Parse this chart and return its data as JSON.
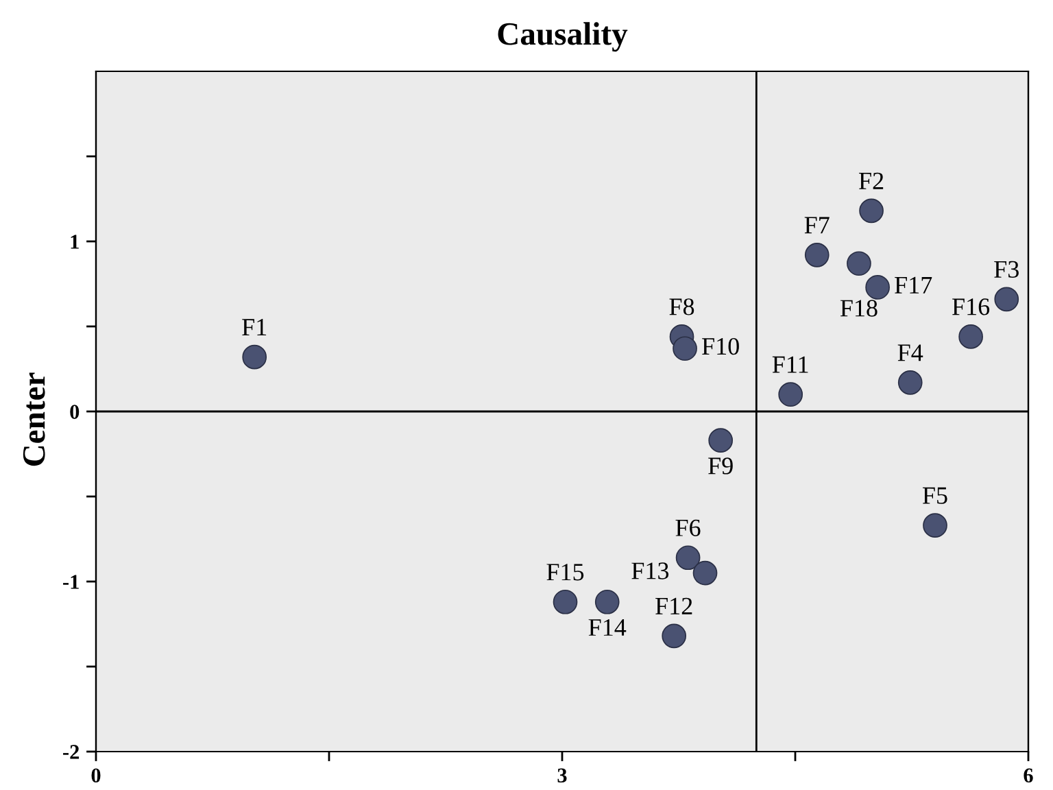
{
  "chart_data": {
    "type": "scatter",
    "title": "Causality",
    "ylabel": "Center",
    "xlim": [
      0,
      6
    ],
    "ylim": [
      -2,
      2
    ],
    "xticks": [
      0,
      {
        "value": 1.5,
        "label": null
      },
      3,
      {
        "value": 4.5,
        "label": null
      },
      6
    ],
    "yticks": [
      -2,
      {
        "value": -1.5,
        "label": null
      },
      -1,
      {
        "value": -0.5,
        "label": null
      },
      0,
      {
        "value": 0.5,
        "label": null
      },
      1,
      {
        "value": 1.5,
        "label": null
      }
    ],
    "ref_lines": [
      {
        "axis": "x",
        "value": 4.25
      },
      {
        "axis": "y",
        "value": 0
      }
    ],
    "series": [
      {
        "color": "#4a5272",
        "x": [
          1.02,
          4.99,
          5.86,
          5.24,
          5.4,
          3.81,
          4.64,
          3.77,
          4.02,
          3.79,
          4.47,
          3.72,
          3.92,
          3.29,
          3.02,
          5.63,
          5.03,
          4.91
        ],
        "values": [
          0.32,
          1.18,
          0.66,
          0.17,
          -0.67,
          -0.86,
          0.92,
          0.44,
          -0.17,
          0.37,
          0.1,
          -1.32,
          -0.95,
          -1.12,
          -1.12,
          0.44,
          0.73,
          0.87
        ]
      }
    ],
    "annotations": [
      {
        "text": "F1",
        "x": 1.02,
        "y": 0.32
      },
      {
        "text": "F2",
        "x": 4.99,
        "y": 1.18
      },
      {
        "text": "F3",
        "x": 5.86,
        "y": 0.66
      },
      {
        "text": "F4",
        "x": 5.24,
        "y": 0.17
      },
      {
        "text": "F5",
        "x": 5.4,
        "y": -0.67
      },
      {
        "text": "F6",
        "x": 3.81,
        "y": -0.86
      },
      {
        "text": "F7",
        "x": 4.64,
        "y": 0.92
      },
      {
        "text": "F8",
        "x": 3.77,
        "y": 0.44
      },
      {
        "text": "F9",
        "x": 4.02,
        "y": -0.17
      },
      {
        "text": "F10",
        "x": 3.79,
        "y": 0.37
      },
      {
        "text": "F11",
        "x": 4.47,
        "y": 0.1
      },
      {
        "text": "F12",
        "x": 3.72,
        "y": -1.32
      },
      {
        "text": "F13",
        "x": 3.92,
        "y": -0.95
      },
      {
        "text": "F14",
        "x": 3.29,
        "y": -1.12
      },
      {
        "text": "F15",
        "x": 3.02,
        "y": -1.12
      },
      {
        "text": "F16",
        "x": 5.63,
        "y": 0.44
      },
      {
        "text": "F17",
        "x": 5.03,
        "y": 0.73
      },
      {
        "text": "F18",
        "x": 4.91,
        "y": 0.87
      }
    ],
    "marker": "circle",
    "grid": false,
    "legend": false
  }
}
